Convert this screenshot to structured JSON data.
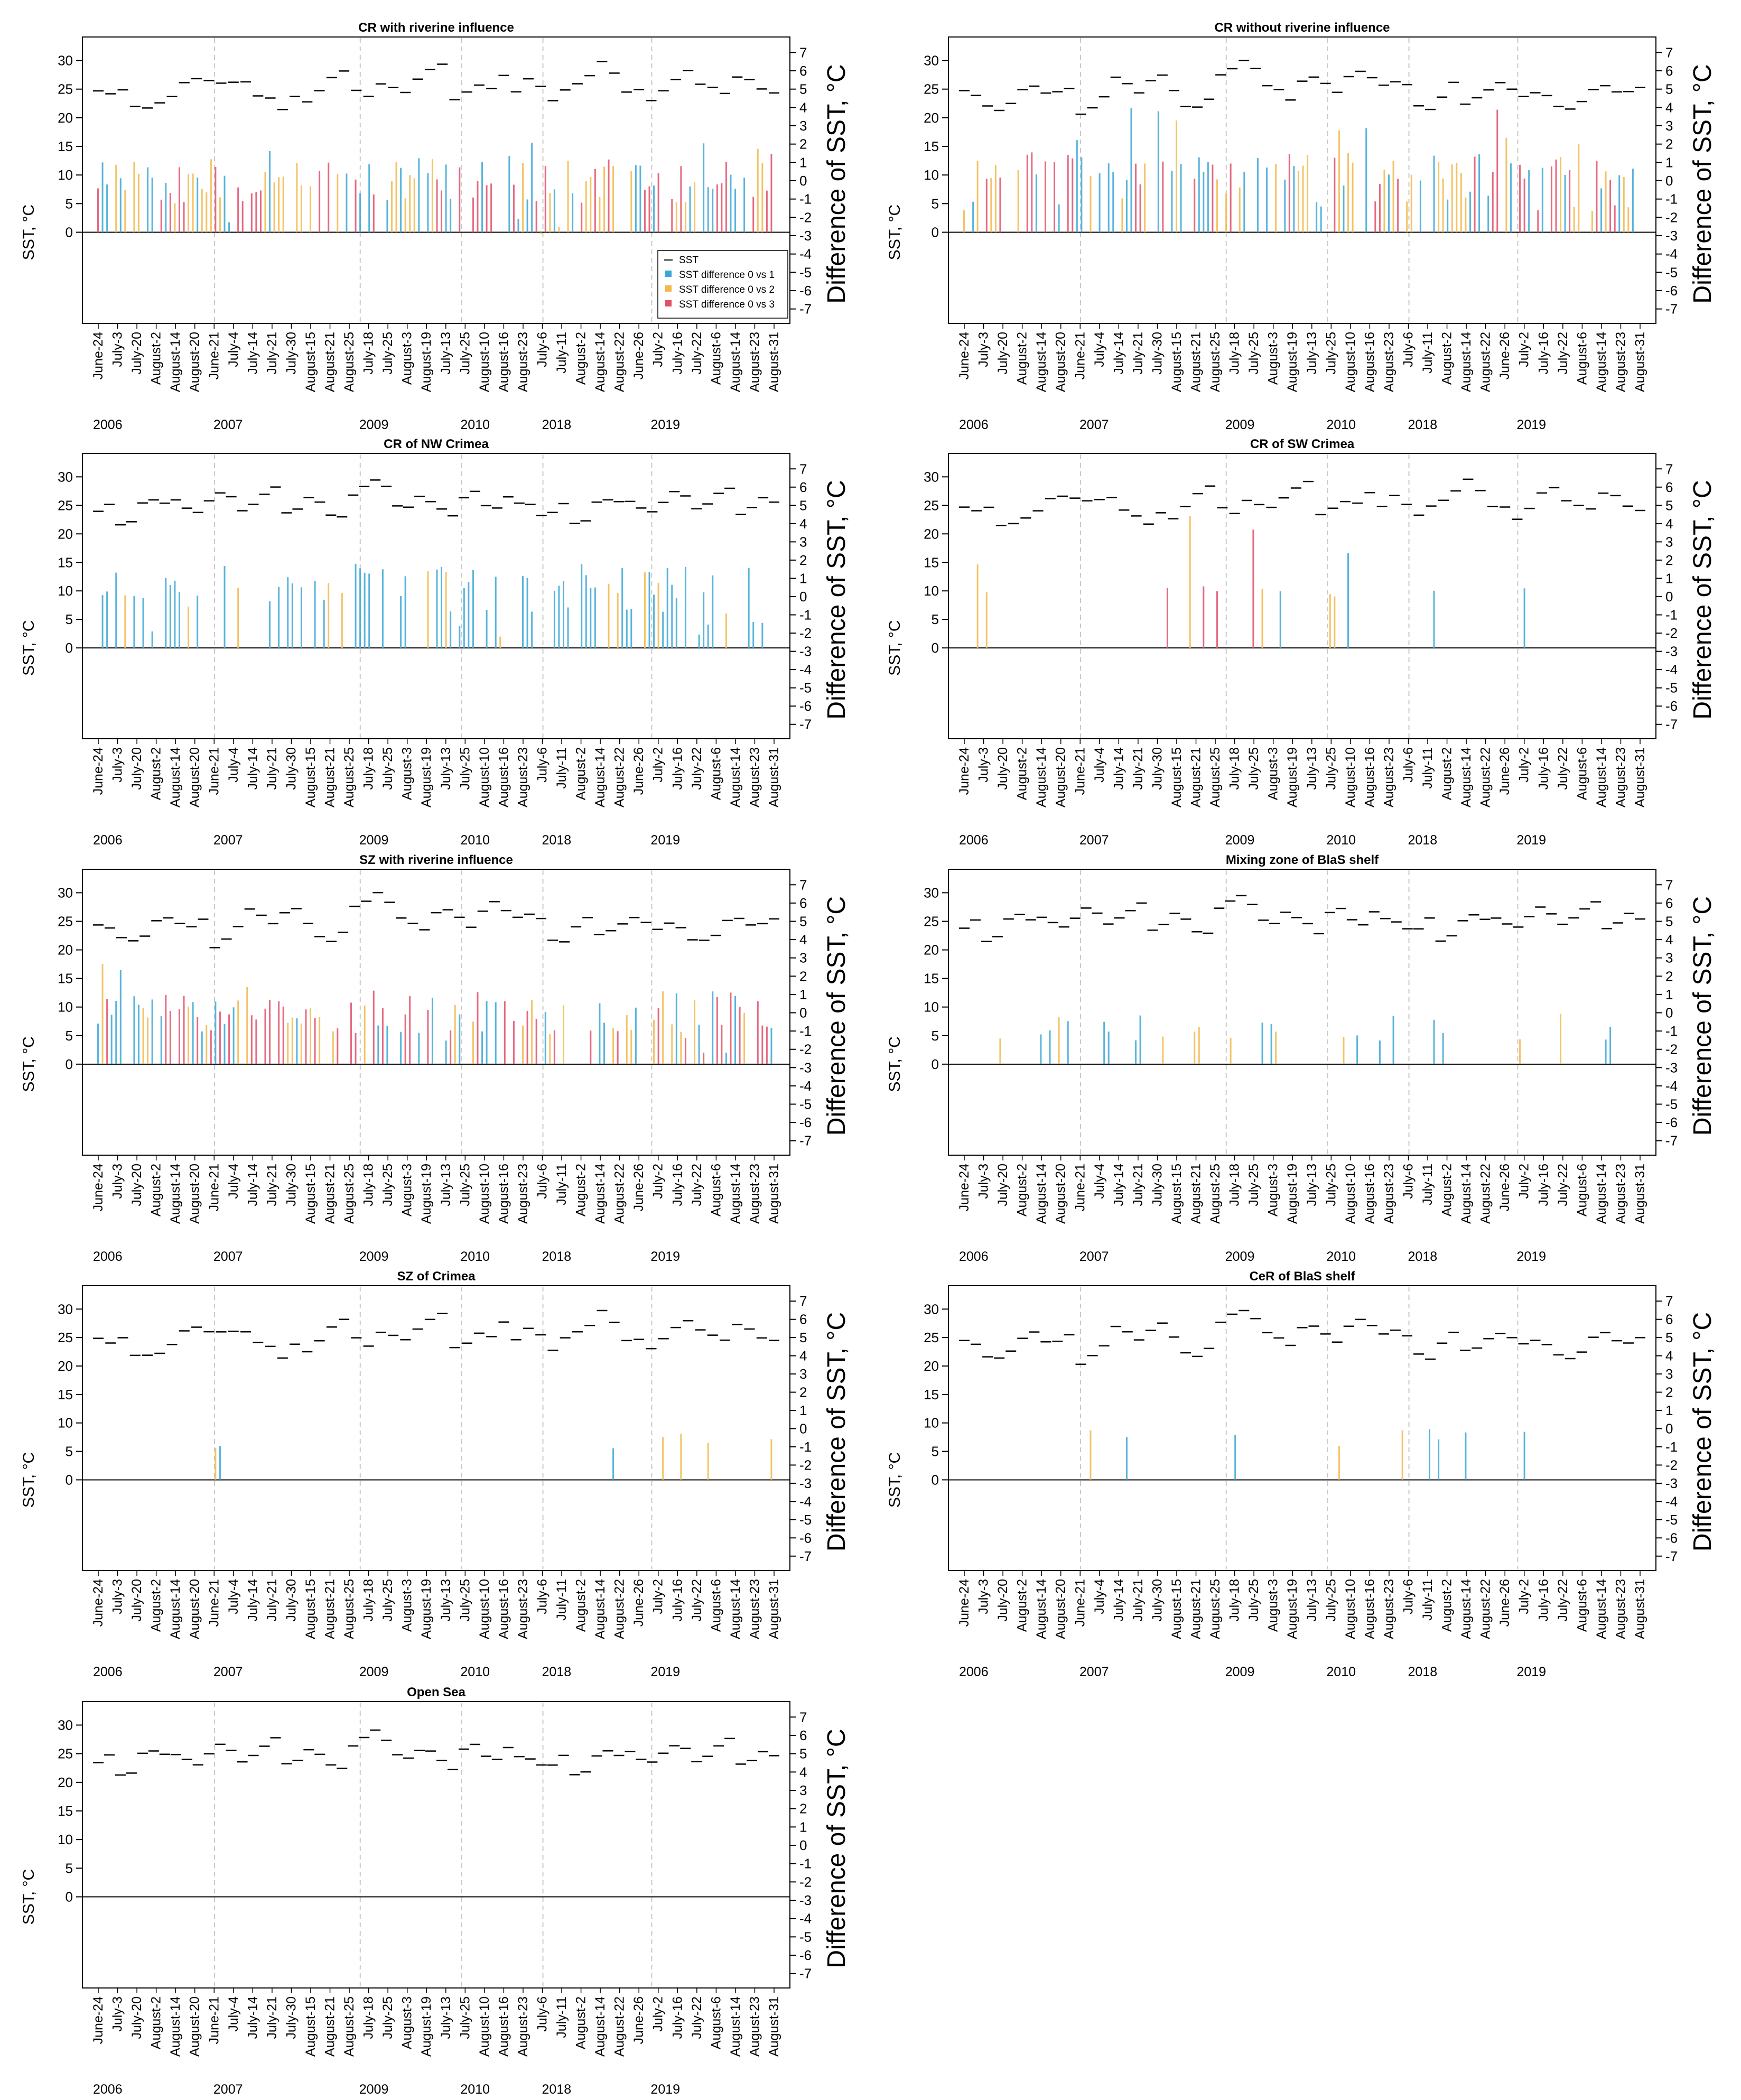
{
  "figure": {
    "legend": {
      "entries": [
        {
          "label": "SST",
          "kind": "dash",
          "color": "#000000"
        },
        {
          "label": "SST difference 0 vs 1",
          "kind": "square",
          "color": "#3ba7d6"
        },
        {
          "label": "SST difference 0 vs 2",
          "kind": "square",
          "color": "#f2b84b"
        },
        {
          "label": "SST difference 0 vs 3",
          "kind": "square",
          "color": "#e0506a"
        }
      ]
    },
    "colors": {
      "sst": "#000000",
      "d1": "#3ba7d6",
      "d2": "#f2b84b",
      "d3": "#e0506a",
      "separator": "#c8c8c8"
    }
  },
  "chart_data": [
    {
      "type": "bar",
      "title": "CR with riverine influence",
      "ylabel": "SST, °C",
      "y2label": "Difference of SST, °C",
      "has_legend": true
    },
    {
      "type": "bar",
      "title": "CR without riverine influence",
      "ylabel": "SST, °C",
      "y2label": "Difference of SST, °C"
    },
    {
      "type": "bar",
      "title": "CR of NW Crimea",
      "ylabel": "SST, °C",
      "y2label": "Difference of SST, °C"
    },
    {
      "type": "bar",
      "title": "CR of SW Crimea",
      "ylabel": "SST, °C",
      "y2label": "Difference of SST, °C"
    },
    {
      "type": "bar",
      "title": "SZ with riverine influence",
      "ylabel": "SST, °C",
      "y2label": "Difference of SST, °C"
    },
    {
      "type": "bar",
      "title": "Mixing zone of BlaS shelf",
      "ylabel": "SST, °C",
      "y2label": "Difference of SST, °C"
    },
    {
      "type": "bar",
      "title": "SZ of Crimea",
      "ylabel": "SST, °C",
      "y2label": "Difference of SST, °C"
    },
    {
      "type": "bar",
      "title": "CeR of BlaS shelf",
      "ylabel": "SST, °C",
      "y2label": "Difference of SST, °C"
    },
    {
      "type": "bar",
      "title": "Open Sea",
      "ylabel": "SST, °C",
      "y2label": "Difference of SST, °C"
    }
  ],
  "axes": {
    "y_left": {
      "ticks": [
        0,
        5,
        10,
        15,
        20,
        25,
        30
      ],
      "range": [
        -15,
        33
      ]
    },
    "y_right": {
      "ticks": [
        7,
        6,
        5,
        4,
        3,
        2,
        1,
        0,
        -1,
        -2,
        -3,
        -4,
        -5,
        -6,
        -7
      ],
      "range": [
        -7.5,
        7.5
      ]
    },
    "x_tick_labels": [
      "June-24",
      "July-3",
      "July-20",
      "August-2",
      "August-14",
      "August-20",
      "June-21",
      "July-4",
      "July-14",
      "July-21",
      "July-30",
      "August-15",
      "August-21",
      "August-25",
      "July-18",
      "July-25",
      "August-3",
      "August-19",
      "July-13",
      "July-25",
      "August-10",
      "August-16",
      "August-23",
      "July-6",
      "July-11",
      "August-2",
      "August-14",
      "August-22",
      "June-26",
      "July-2",
      "July-16",
      "July-22",
      "August-6",
      "August-14",
      "August-23",
      "August-31"
    ],
    "years": [
      "2006",
      "2007",
      "2009",
      "2010",
      "2018",
      "2019"
    ],
    "year_start_fraction": [
      0.0,
      0.176,
      0.389,
      0.537,
      0.656,
      0.815
    ]
  },
  "series": {
    "sst_profiles": [
      [
        24.6,
        24.3,
        24.8,
        21.7,
        21.6,
        22.5,
        23.9,
        25.9,
        26.7,
        26.3,
        25.9,
        26.3,
        26.1,
        24,
        23.4,
        21.6,
        23.9,
        22.6,
        24.5,
        26.8,
        28.4,
        24.8,
        23.6,
        26,
        25.4,
        24.5,
        26.5,
        28.2,
        29.4,
        23.2,
        24.3,
        25.9,
        25.3,
        27.5,
        24.6,
        26.8,
        25.2,
        23,
        24.7,
        26.1,
        27.4,
        29.6,
        27.6,
        24.6,
        24.9,
        22.8,
        24.6,
        26.9,
        28.2,
        26.1,
        25.2,
        24.3,
        27,
        26.8,
        25.1,
        24.4,
        26.9,
        24.2,
        23.1,
        24.8,
        25.2,
        23.6,
        24.2
      ],
      [
        24.5,
        23.6,
        21.9,
        21.4,
        22.7,
        25.1,
        25.7,
        24.4,
        24.3,
        25.2,
        20.5,
        21.9,
        23.8,
        27,
        25.9,
        24.4,
        26.5,
        27.5,
        24.9,
        22.1,
        21.6,
        23.1,
        27.6,
        28.8,
        29.9,
        28.4,
        25.6,
        24.8,
        23.4,
        26.5,
        27.1,
        25.7,
        24.2,
        27,
        28.3,
        26.9,
        25.7,
        26.3,
        25.5,
        21.8,
        21.2,
        23.9,
        25.9,
        22.6,
        23.4,
        24.7,
        25.9,
        24.9,
        23.8
      ],
      [
        23.8,
        25.3,
        21.7,
        22.4,
        25.4,
        25.9,
        25.5,
        25.7,
        24.7,
        23.9,
        25.8,
        27.2,
        26.4,
        24.3,
        25.4,
        26.9,
        28.2,
        23.6,
        24.6,
        26.1,
        25.4,
        23.4,
        22.9,
        27.1,
        28.3,
        29.6,
        28.1,
        25.2,
        24.6,
        26.3,
        25.8,
        24.4,
        23.1,
        26.6,
        27.2,
        25.1,
        24.4,
        26.4,
        25.2,
        24.9,
        23.4
      ]
    ],
    "diff_density": [
      0.75,
      0.65,
      0.45,
      0.1,
      0.75,
      0.22,
      0.02,
      0.05,
      0.0
    ]
  }
}
